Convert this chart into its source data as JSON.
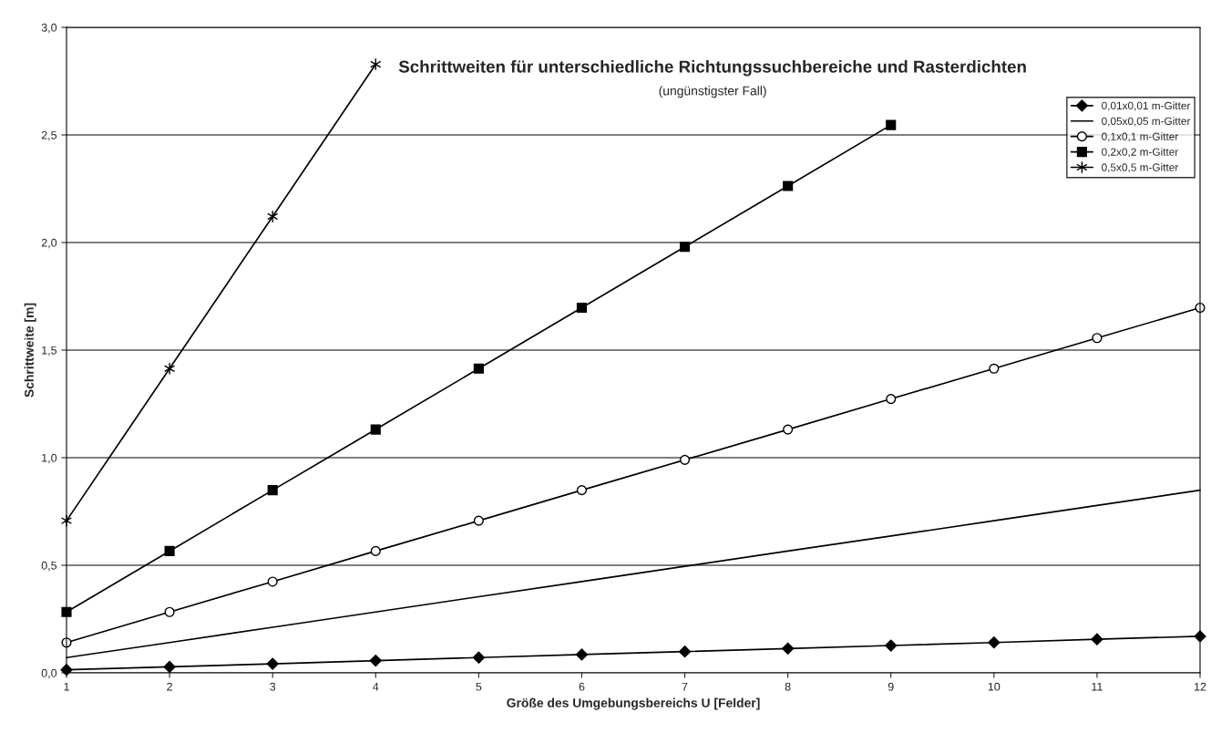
{
  "chart_data": {
    "type": "line",
    "title": "Schrittweiten für unterschiedliche Richtungssuchbereiche und Rasterdichten",
    "subtitle": "(ungünstigster Fall)",
    "xlabel": "Größe des Umgebungsbereichs U [Felder]",
    "ylabel": "Schrittweite [m]",
    "x": [
      1,
      2,
      3,
      4,
      5,
      6,
      7,
      8,
      9,
      10,
      11,
      12
    ],
    "series": [
      {
        "name": "0,01x0,01 m-Gitter",
        "color": "#000000",
        "marker": "diamond",
        "values": [
          0.014,
          0.028,
          0.042,
          0.057,
          0.071,
          0.085,
          0.099,
          0.113,
          0.127,
          0.141,
          0.156,
          0.17
        ]
      },
      {
        "name": "0,05x0,05 m-Gitter",
        "color": "#000000",
        "marker": "none",
        "values": [
          0.071,
          0.141,
          0.212,
          0.283,
          0.354,
          0.424,
          0.495,
          0.566,
          0.636,
          0.707,
          0.778,
          0.849
        ]
      },
      {
        "name": "0,1x0,1 m-Gitter",
        "color": "#000000",
        "marker": "circle",
        "values": [
          0.141,
          0.283,
          0.424,
          0.566,
          0.707,
          0.849,
          0.99,
          1.131,
          1.273,
          1.414,
          1.556,
          1.697
        ]
      },
      {
        "name": "0,2x0,2 m-Gitter",
        "color": "#000000",
        "marker": "square",
        "values": [
          0.283,
          0.566,
          0.849,
          1.131,
          1.414,
          1.697,
          1.98,
          2.263,
          2.546,
          null,
          null,
          null
        ]
      },
      {
        "name": "0,5x0,5 m-Gitter",
        "color": "#000000",
        "marker": "cross",
        "values": [
          0.707,
          1.414,
          2.121,
          2.828,
          null,
          null,
          null,
          null,
          null,
          null,
          null,
          null
        ]
      }
    ],
    "xlim": [
      1,
      12
    ],
    "xticks": [
      1,
      2,
      3,
      4,
      5,
      6,
      7,
      8,
      9,
      10,
      11,
      12
    ],
    "ylim": [
      0,
      3
    ],
    "yticks": [
      {
        "value": 0,
        "label": "0,0"
      },
      {
        "value": 0.5,
        "label": "0,5"
      },
      {
        "value": 1,
        "label": "1,0"
      },
      {
        "value": 1.5,
        "label": "1,5"
      },
      {
        "value": 2,
        "label": "2,0"
      },
      {
        "value": 2.5,
        "label": "2,5"
      },
      {
        "value": 3,
        "label": "3,0"
      }
    ],
    "grid": "y",
    "legend": "top right",
    "line_style": "solid"
  }
}
